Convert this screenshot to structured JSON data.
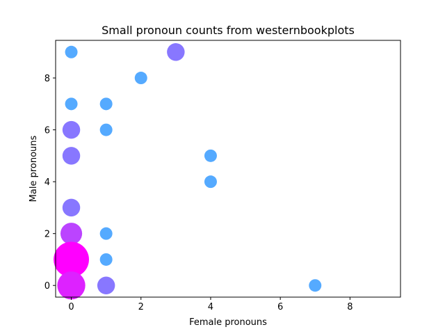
{
  "chart_data": {
    "type": "scatter",
    "title": "Small pronoun counts from westernbookplots",
    "xlabel": "Female pronouns",
    "ylabel": "Male pronouns",
    "xlim": [
      -0.45,
      9.45
    ],
    "ylim": [
      -0.45,
      9.45
    ],
    "xticks": [
      0,
      2,
      4,
      6,
      8
    ],
    "yticks": [
      0,
      2,
      4,
      6,
      8
    ],
    "grid": false,
    "legend": "none",
    "points": [
      {
        "x": 0,
        "y": 9,
        "size": 1,
        "color": "#55aaff"
      },
      {
        "x": 3,
        "y": 9,
        "size": 2,
        "color": "#8877ff"
      },
      {
        "x": 2,
        "y": 8,
        "size": 1,
        "color": "#55aaff"
      },
      {
        "x": 0,
        "y": 7,
        "size": 1,
        "color": "#55aaff"
      },
      {
        "x": 1,
        "y": 7,
        "size": 1,
        "color": "#55aaff"
      },
      {
        "x": 0,
        "y": 6,
        "size": 2,
        "color": "#8877ff"
      },
      {
        "x": 1,
        "y": 6,
        "size": 1,
        "color": "#55aaff"
      },
      {
        "x": 0,
        "y": 5,
        "size": 2,
        "color": "#8877ff"
      },
      {
        "x": 4,
        "y": 5,
        "size": 1,
        "color": "#55aaff"
      },
      {
        "x": 4,
        "y": 4,
        "size": 1,
        "color": "#55aaff"
      },
      {
        "x": 0,
        "y": 3,
        "size": 2,
        "color": "#8877ff"
      },
      {
        "x": 0,
        "y": 2,
        "size": 3,
        "color": "#bb44ff"
      },
      {
        "x": 1,
        "y": 2,
        "size": 1,
        "color": "#55aaff"
      },
      {
        "x": 0,
        "y": 1,
        "size": 8,
        "color": "#ff00ff"
      },
      {
        "x": 1,
        "y": 1,
        "size": 1,
        "color": "#55aaff"
      },
      {
        "x": 0,
        "y": 0,
        "size": 5,
        "color": "#dd22ff"
      },
      {
        "x": 1,
        "y": 0,
        "size": 2,
        "color": "#8877ff"
      },
      {
        "x": 7,
        "y": 0,
        "size": 1,
        "color": "#55aaff"
      }
    ]
  }
}
